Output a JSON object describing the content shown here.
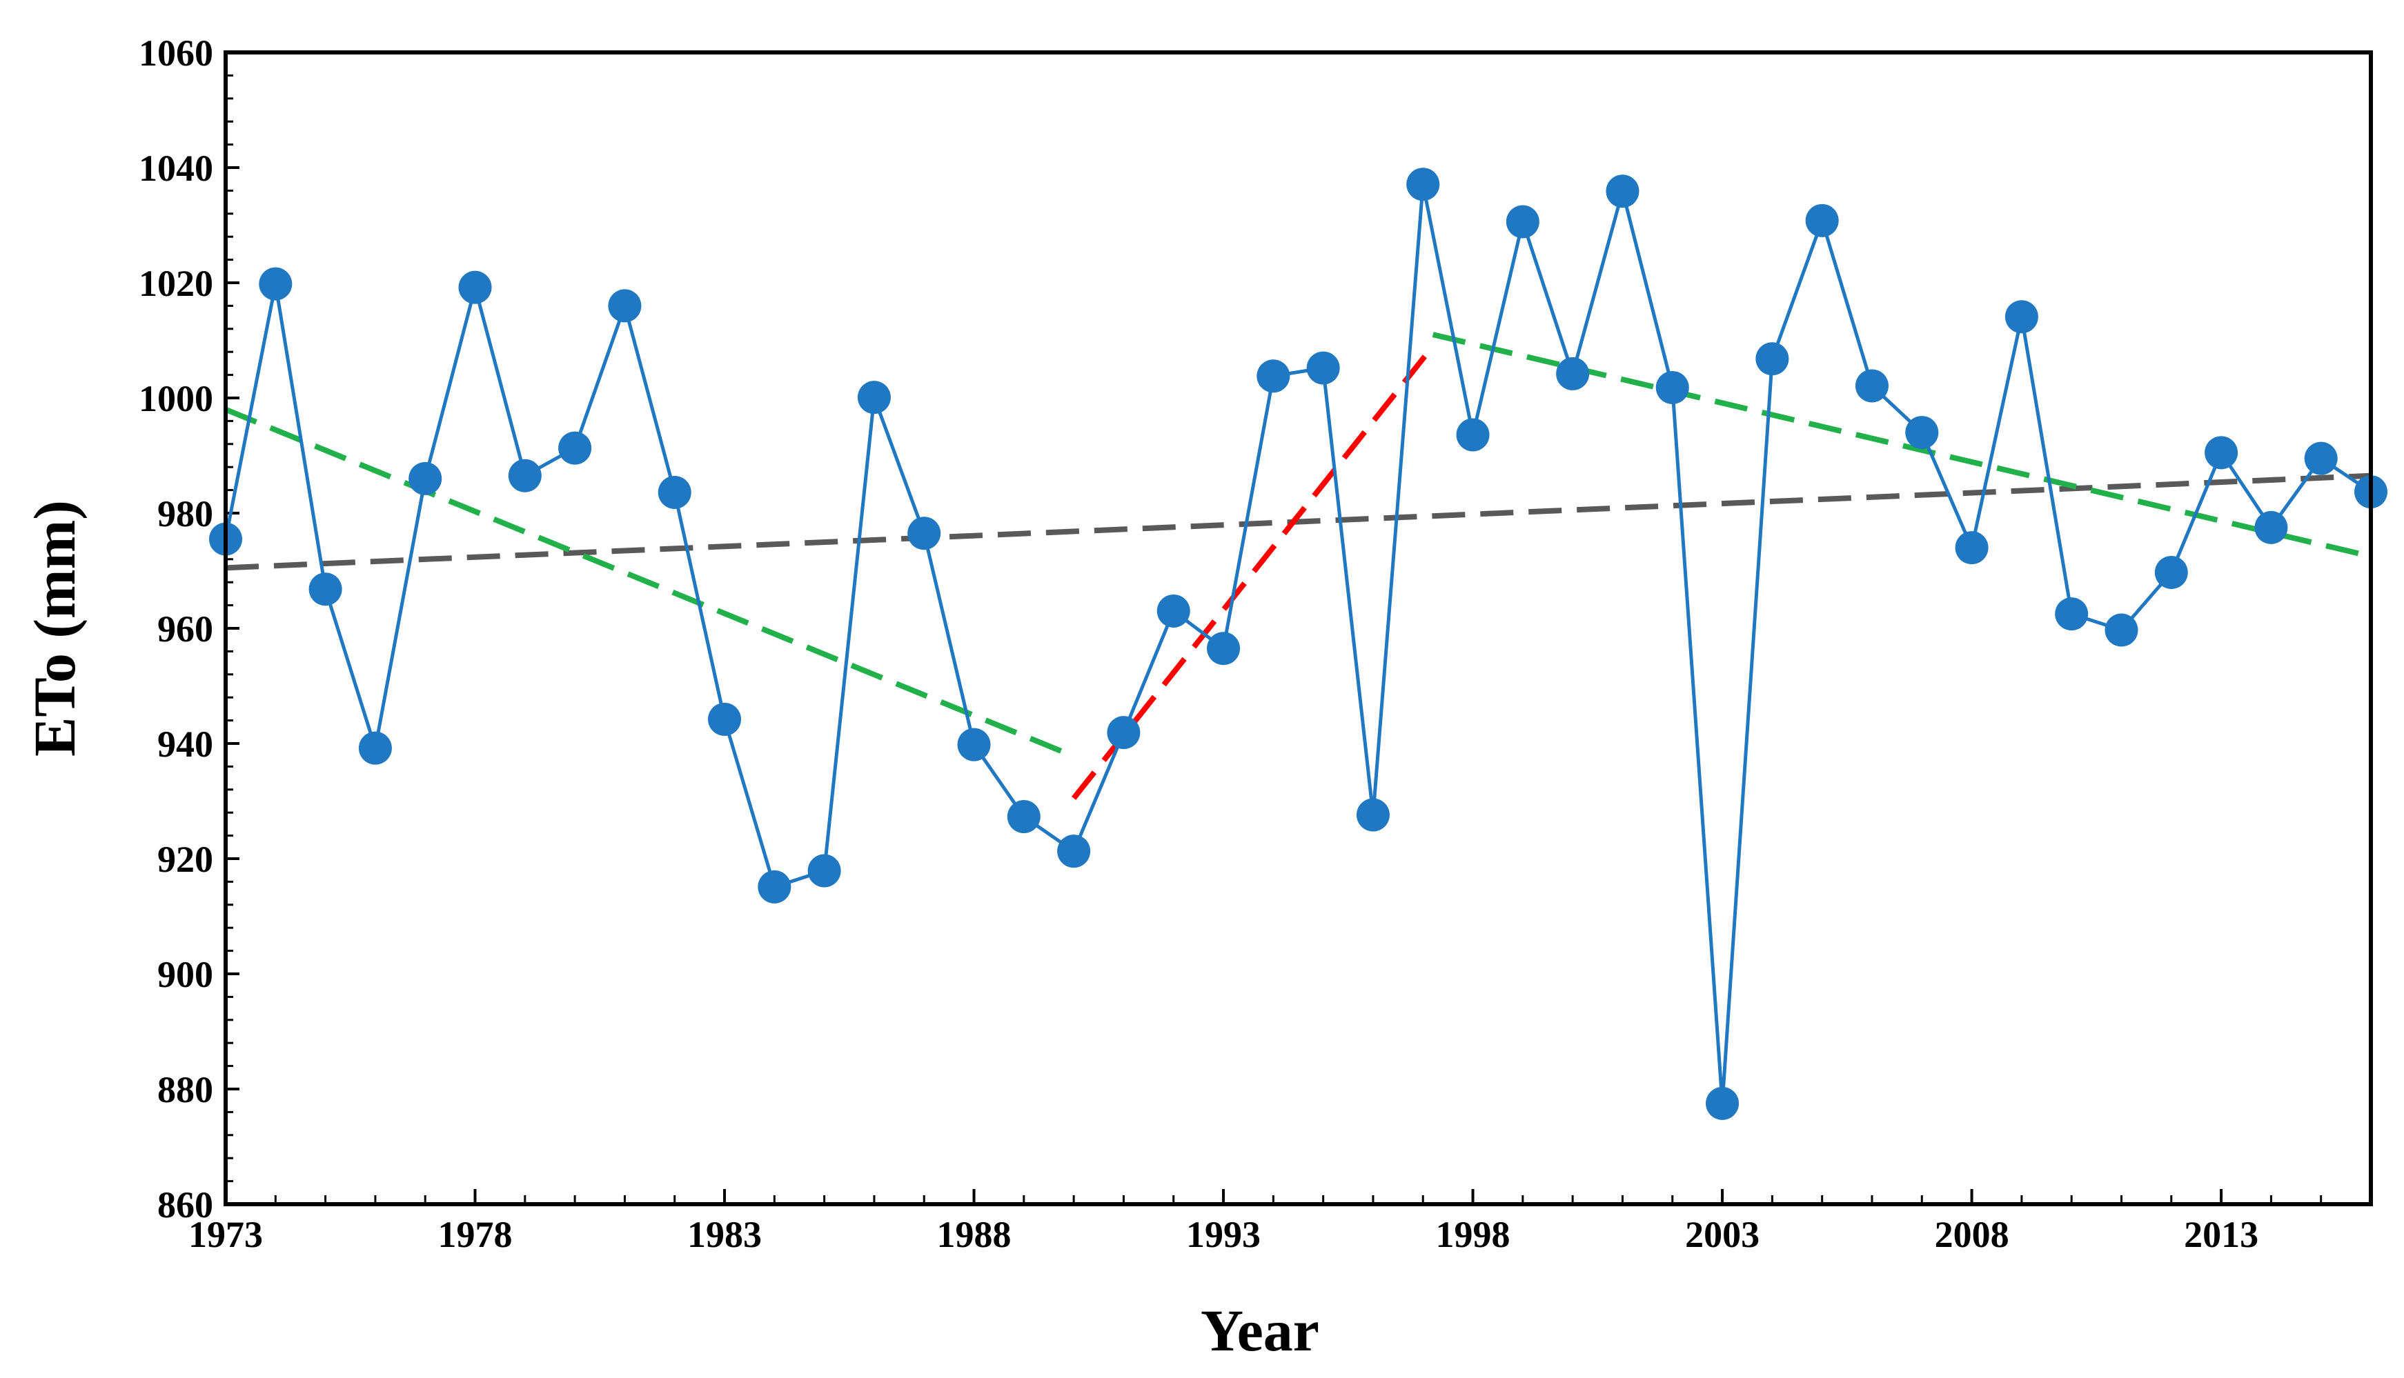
{
  "chart_data": {
    "type": "line",
    "title": "",
    "xlabel": "Year",
    "ylabel": "ETo (mm)",
    "xlim": [
      1973,
      2016
    ],
    "ylim": [
      860,
      1060
    ],
    "y_tick_step": 20,
    "x_ticks": [
      1973,
      1978,
      1983,
      1988,
      1993,
      1998,
      2003,
      2008,
      2013
    ],
    "x_tick_labels": [
      "1973",
      "1978",
      "1983",
      "1988",
      "1993",
      "1998",
      "2003",
      "2008",
      "2013"
    ],
    "y_tick_labels": [
      "860",
      "880",
      "900",
      "920",
      "940",
      "960",
      "980",
      "1000",
      "1020",
      "1040",
      "1060"
    ],
    "grid": false,
    "legend": "none",
    "colors": {
      "series": "#1f78c1",
      "overall_trend": "#595959",
      "segment_trend": "#22b04a",
      "rising_trend": "#ff0000"
    },
    "series": [
      {
        "name": "ETo",
        "x": [
          1973,
          1974,
          1975,
          1976,
          1977,
          1978,
          1979,
          1980,
          1981,
          1982,
          1983,
          1984,
          1985,
          1986,
          1987,
          1988,
          1989,
          1990,
          1991,
          1992,
          1993,
          1994,
          1995,
          1996,
          1997,
          1998,
          1999,
          2000,
          2001,
          2002,
          2003,
          2004,
          2005,
          2006,
          2007,
          2008,
          2009,
          2010,
          2011,
          2012,
          2013,
          2014,
          2015,
          2016
        ],
        "values": [
          975.5,
          1019.8,
          966.8,
          939.2,
          986,
          1019.2,
          986.5,
          991.3,
          1016,
          983.6,
          944.2,
          915.1,
          917.9,
          1000.1,
          976.5,
          939.8,
          927.3,
          921.3,
          941.9,
          963,
          956.5,
          1003.8,
          1005.2,
          927.6,
          1037.1,
          993.6,
          1030.6,
          1004.2,
          1035.9,
          1001.8,
          877.5,
          1006.8,
          1030.8,
          1002.1,
          994,
          974,
          1014.1,
          962.5,
          959.7,
          969.7,
          990.5,
          977.5,
          989.5,
          983.7
        ]
      }
    ],
    "trend_lines": [
      {
        "name": "overall trend",
        "x": [
          1973,
          2016
        ],
        "y": [
          970.5,
          986.5
        ],
        "color": "#595959"
      },
      {
        "name": "trend 1973-1990",
        "x": [
          1973,
          1989.8
        ],
        "y": [
          998,
          938.5
        ],
        "color": "#22b04a"
      },
      {
        "name": "trend 1990-1997",
        "x": [
          1990,
          1997.2
        ],
        "y": [
          930.5,
          1009
        ],
        "color": "#ff0000"
      },
      {
        "name": "trend 1997-2016",
        "x": [
          1997.2,
          2016
        ],
        "y": [
          1011,
          972.5
        ],
        "color": "#22b04a"
      }
    ]
  }
}
